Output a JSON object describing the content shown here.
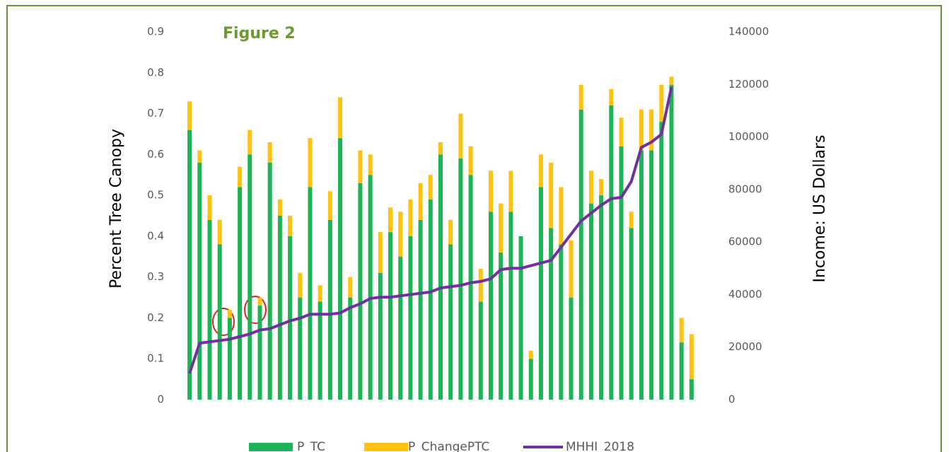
{
  "chart_data": {
    "type": "bar",
    "title": "Figure 2",
    "ylabel": "Percent Tree Canopy",
    "y2label": "Income: US Dollars",
    "ylim": [
      0,
      0.9
    ],
    "yticks": [
      0,
      0.1,
      0.2,
      0.3,
      0.4,
      0.5,
      0.6,
      0.7,
      0.8,
      0.9
    ],
    "y2lim": [
      0,
      140000
    ],
    "y2ticks": [
      0,
      20000,
      40000,
      60000,
      80000,
      100000,
      120000,
      140000
    ],
    "stacked": true,
    "series": [
      {
        "name": "P_TC",
        "type": "bar",
        "color": "#1db356",
        "values": [
          0.66,
          0.58,
          0.44,
          0.38,
          0.2,
          0.52,
          0.6,
          0.23,
          0.58,
          0.45,
          0.4,
          0.25,
          0.52,
          0.24,
          0.44,
          0.64,
          0.25,
          0.53,
          0.55,
          0.31,
          0.41,
          0.35,
          0.4,
          0.44,
          0.49,
          0.6,
          0.38,
          0.59,
          0.55,
          0.24,
          0.46,
          0.36,
          0.46,
          0.4,
          0.1,
          0.52,
          0.42,
          0.38,
          0.25,
          0.71,
          0.48,
          0.5,
          0.72,
          0.62,
          0.42,
          0.61,
          0.61,
          0.68,
          0.77,
          0.14,
          0.05
        ]
      },
      {
        "name": "P_ChangePTC",
        "type": "bar",
        "color": "#ffc20e",
        "values": [
          0.07,
          0.03,
          0.06,
          0.06,
          0.02,
          0.05,
          0.06,
          0.02,
          0.05,
          0.04,
          0.05,
          0.06,
          0.12,
          0.04,
          0.07,
          0.1,
          0.05,
          0.08,
          0.05,
          0.1,
          0.06,
          0.11,
          0.09,
          0.09,
          0.06,
          0.03,
          0.06,
          0.11,
          0.07,
          0.08,
          0.1,
          0.12,
          0.1,
          0,
          0.02,
          0.08,
          0.16,
          0.14,
          0.14,
          0.06,
          0.08,
          0.04,
          0.04,
          0.07,
          0.04,
          0.1,
          0.1,
          0.09,
          0.02,
          0.06,
          0.11
        ]
      },
      {
        "name": "MHHI_2018",
        "type": "line",
        "axis": "y2",
        "color": "#7030a0",
        "values": [
          10000,
          21500,
          22000,
          22500,
          23000,
          24000,
          25000,
          26500,
          27000,
          28500,
          30000,
          31000,
          32500,
          32500,
          32500,
          33000,
          35000,
          36500,
          38500,
          39000,
          39000,
          39500,
          40000,
          40500,
          41000,
          42500,
          43000,
          43500,
          44500,
          45000,
          46000,
          49500,
          50000,
          50000,
          51000,
          52000,
          53000,
          58000,
          63000,
          68000,
          71000,
          74000,
          76500,
          77000,
          83000,
          96000,
          98000,
          101000,
          119000,
          null,
          null
        ]
      }
    ]
  }
}
